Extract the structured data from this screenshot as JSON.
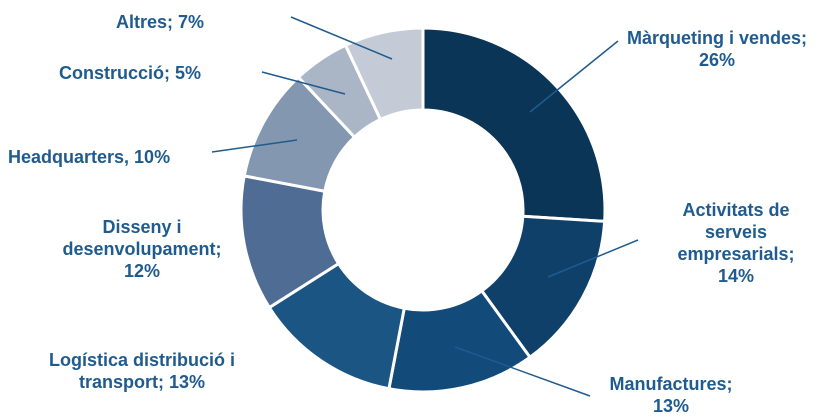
{
  "chart_data": {
    "type": "pie",
    "subtype": "donut",
    "start": "top, clockwise",
    "slices": [
      {
        "label": "Màrqueting i vendes",
        "value": 26,
        "text": [
          "Màrqueting i vendes;",
          "26%"
        ],
        "color": "#0a3557"
      },
      {
        "label": "Activitats de serveis empresarials",
        "value": 14,
        "text": [
          "Activitats de",
          "serveis",
          "empresarials;",
          "14%"
        ],
        "color": "#0e406a"
      },
      {
        "label": "Manufactures",
        "value": 13,
        "text": [
          "Manufactures;",
          "13%"
        ],
        "color": "#124a7a"
      },
      {
        "label": "Logística distribució i transport",
        "value": 13,
        "text": [
          "Logística distribució i",
          "transport; 13%"
        ],
        "color": "#1a5583"
      },
      {
        "label": "Disseny i desenvolupament",
        "value": 12,
        "text": [
          "Disseny i",
          "desenvolupament;",
          "12%"
        ],
        "color": "#4f6d94"
      },
      {
        "label": "Headquarters",
        "value": 10,
        "text": [
          "Headquarters, 10%"
        ],
        "color": "#8497b0"
      },
      {
        "label": "Construcció",
        "value": 5,
        "text": [
          "Construcció; 5%"
        ],
        "color": "#aab6c6"
      },
      {
        "label": "Altres",
        "value": 7,
        "text": [
          "Altres; 7%"
        ],
        "color": "#c4cbd7"
      }
    ]
  }
}
